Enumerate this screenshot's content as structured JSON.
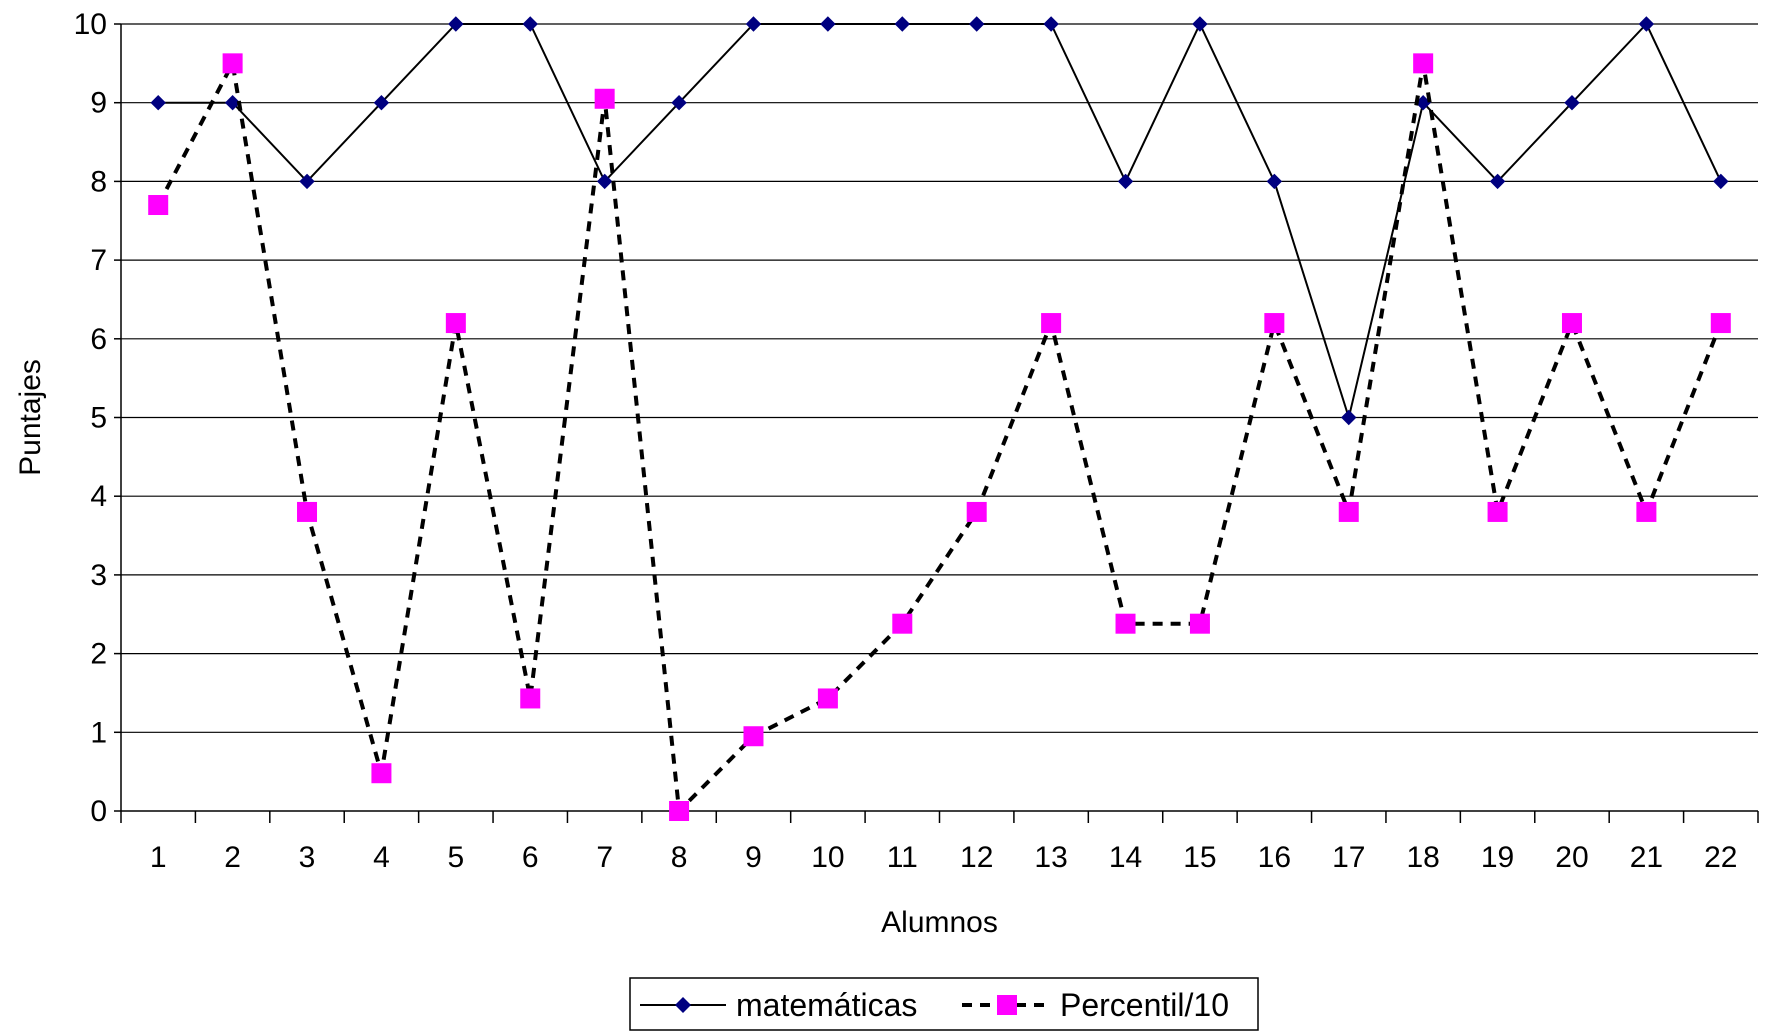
{
  "chart_data": {
    "type": "line",
    "xlabel": "Alumnos",
    "ylabel": "Puntajes",
    "categories": [
      "1",
      "2",
      "3",
      "4",
      "5",
      "6",
      "7",
      "8",
      "9",
      "10",
      "11",
      "12",
      "13",
      "14",
      "15",
      "16",
      "17",
      "18",
      "19",
      "20",
      "21",
      "22"
    ],
    "ylim": [
      0,
      10
    ],
    "yticks": [
      "0",
      "1",
      "2",
      "3",
      "4",
      "5",
      "6",
      "7",
      "8",
      "9",
      "10"
    ],
    "grid": true,
    "legend_position": "bottom",
    "series": [
      {
        "name": "matemáticas",
        "color": "#000080",
        "line_color": "#000000",
        "line_style": "solid",
        "marker": "diamond",
        "values": [
          9,
          9,
          8,
          9,
          10,
          10,
          8,
          9,
          10,
          10,
          10,
          10,
          10,
          8,
          10,
          8,
          5,
          9,
          8,
          9,
          10,
          8
        ]
      },
      {
        "name": "Percentil/10",
        "color": "#ff00ff",
        "line_color": "#000000",
        "line_style": "dashed",
        "marker": "square",
        "values": [
          7.7,
          9.5,
          3.8,
          0.48,
          6.2,
          1.43,
          9.05,
          0,
          0.95,
          1.43,
          2.38,
          3.8,
          6.2,
          2.38,
          2.38,
          6.2,
          3.8,
          9.5,
          3.8,
          6.2,
          3.8,
          6.2
        ]
      }
    ]
  }
}
